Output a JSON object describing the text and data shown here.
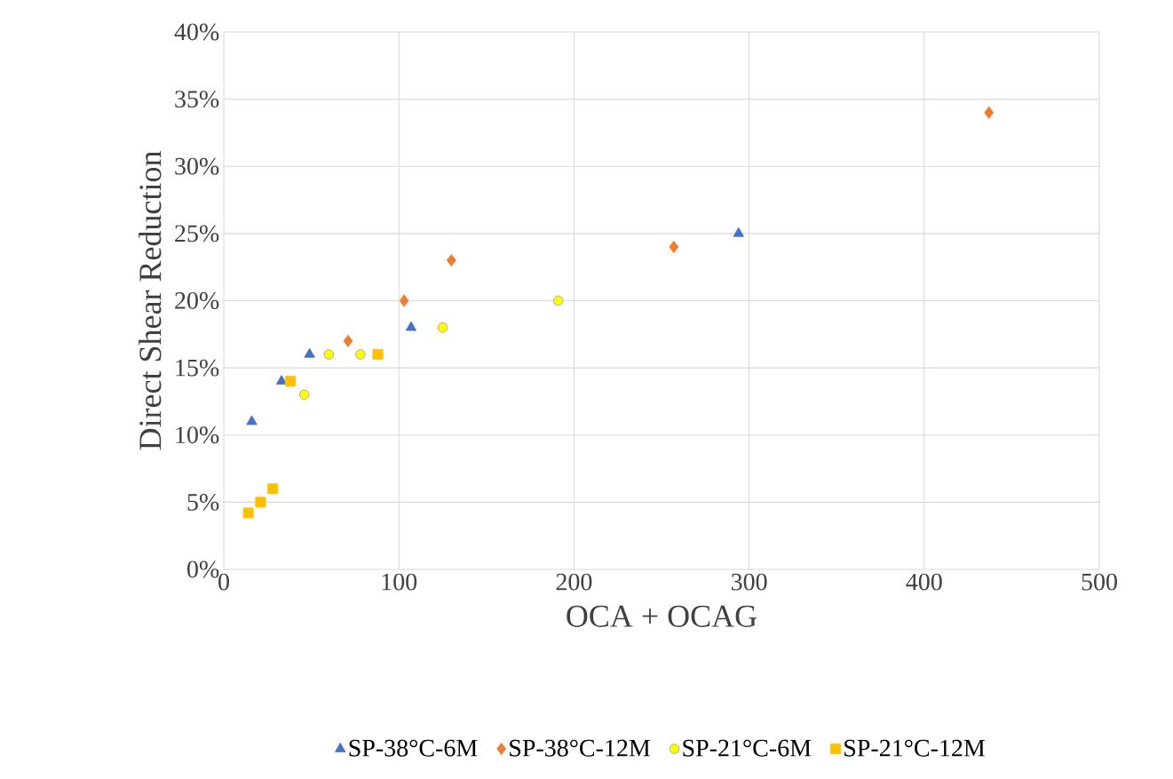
{
  "chart_data": {
    "type": "scatter",
    "xlabel": "OCA + OCAG",
    "ylabel": "Direct Shear Reduction",
    "xlim": [
      0,
      500
    ],
    "xticks": [
      0,
      100,
      200,
      300,
      400,
      500
    ],
    "ylim": [
      0,
      0.4
    ],
    "yticks": [
      {
        "value": 0,
        "label": "0%"
      },
      {
        "value": 0.05,
        "label": "5%"
      },
      {
        "value": 0.1,
        "label": "10%"
      },
      {
        "value": 0.15,
        "label": "15%"
      },
      {
        "value": 0.2,
        "label": "20%"
      },
      {
        "value": 0.25,
        "label": "25%"
      },
      {
        "value": 0.3,
        "label": "30%"
      },
      {
        "value": 0.35,
        "label": "35%"
      },
      {
        "value": 0.4,
        "label": "40%"
      }
    ],
    "grid": true,
    "legend": "bottom",
    "series": [
      {
        "name": "SP-38°C-6M",
        "color": "#4472c4",
        "marker": "triangle",
        "x": [
          16,
          33,
          49,
          107,
          294
        ],
        "values": [
          0.11,
          0.14,
          0.16,
          0.18,
          0.25
        ]
      },
      {
        "name": "SP-38°C-12M",
        "color": "#ed7d31",
        "marker": "diamond",
        "x": [
          71,
          103,
          130,
          257,
          437
        ],
        "values": [
          0.17,
          0.2,
          0.23,
          0.24,
          0.34
        ]
      },
      {
        "name": "SP-21°C-6M",
        "color": "#ffff00",
        "marker": "circle",
        "x": [
          46,
          60,
          78,
          125,
          191
        ],
        "values": [
          0.13,
          0.16,
          0.16,
          0.18,
          0.2
        ]
      },
      {
        "name": "SP-21°C-12M",
        "color": "#ffc000",
        "marker": "square",
        "x": [
          14,
          21,
          28,
          38,
          88
        ],
        "values": [
          0.042,
          0.05,
          0.06,
          0.14,
          0.16
        ]
      }
    ]
  }
}
